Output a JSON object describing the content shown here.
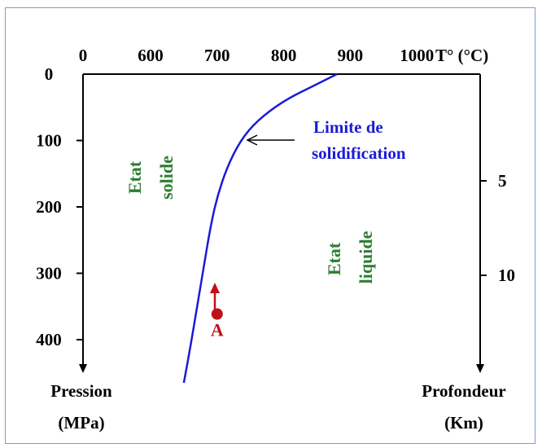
{
  "chart_data": {
    "type": "line",
    "x_axis": {
      "label": "T° (°C)",
      "position": "top",
      "ticks": [
        0,
        600,
        700,
        800,
        900,
        1000
      ],
      "range": [
        0,
        1100
      ]
    },
    "y_axis_left": {
      "label_line1": "Pression",
      "label_line2": "(MPa)",
      "ticks": [
        0,
        100,
        200,
        300,
        400
      ],
      "range": [
        0,
        460
      ]
    },
    "y_axis_right": {
      "label_line1": "Profondeur",
      "label_line2": "(Km)",
      "ticks": [
        5,
        10
      ]
    },
    "series": [
      {
        "name": "Limite de solidification",
        "color": "#1b1bd8",
        "points": [
          {
            "x": 880,
            "y": 0
          },
          {
            "x": 850,
            "y": 15
          },
          {
            "x": 800,
            "y": 40
          },
          {
            "x": 760,
            "y": 70
          },
          {
            "x": 735,
            "y": 100
          },
          {
            "x": 715,
            "y": 140
          },
          {
            "x": 700,
            "y": 185
          },
          {
            "x": 690,
            "y": 230
          },
          {
            "x": 680,
            "y": 290
          },
          {
            "x": 670,
            "y": 350
          },
          {
            "x": 660,
            "y": 410
          },
          {
            "x": 650,
            "y": 465
          }
        ]
      }
    ],
    "curve_label_line1": "Limite de",
    "curve_label_line2": "solidification",
    "region_solid_line1": "Etat",
    "region_solid_line2": "solide",
    "region_liquid_line1": "Etat",
    "region_liquid_line2": "liquide",
    "point_A": {
      "label": "A",
      "x": 700,
      "y": 370,
      "color": "#c0101a"
    }
  }
}
